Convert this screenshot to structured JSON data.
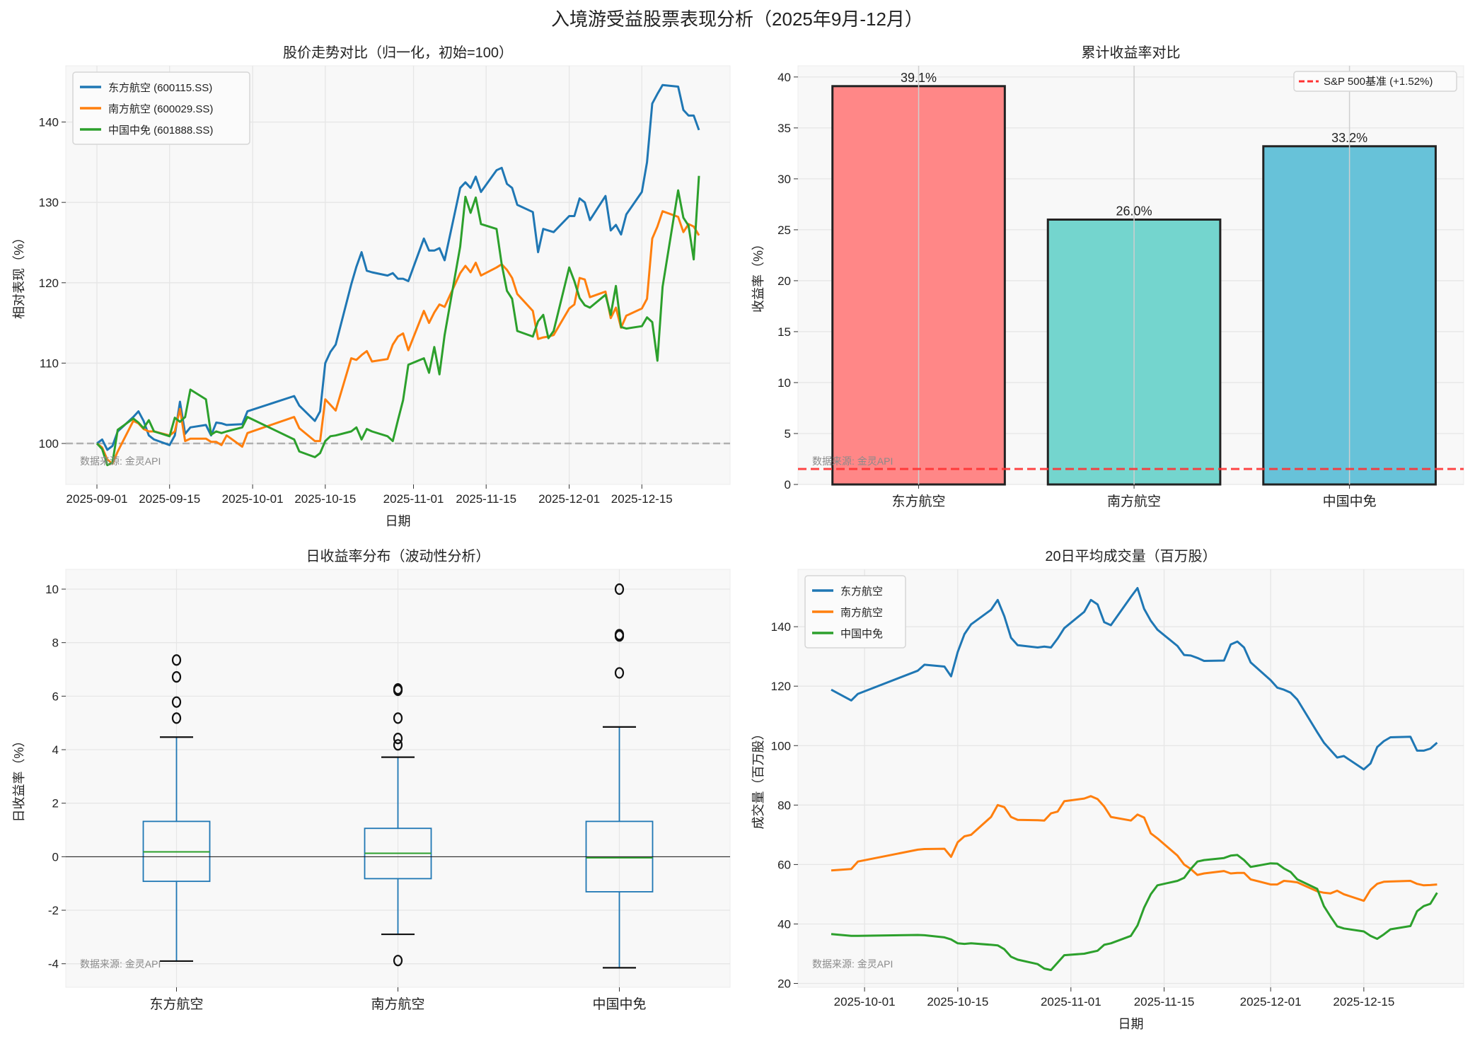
{
  "title": "入境游受益股票表现分析（2025年9月-12月）",
  "colors": {
    "blue": "#1f77b4",
    "orange": "#ff7f0e",
    "green": "#2ca02c",
    "benchmark": "#ff3333"
  },
  "chart_data": [
    {
      "type": "line",
      "title": "股价走势对比（归一化，初始=100）",
      "xlabel": "日期",
      "ylabel": "相对表现（%）",
      "xlim": [
        "2025-08-26",
        "2026-01-01"
      ],
      "ylim": [
        94.9,
        147
      ],
      "yticks": [
        100,
        110,
        120,
        130,
        140
      ],
      "xticks": [
        "2025-09-01",
        "2025-09-15",
        "2025-10-01",
        "2025-10-15",
        "2025-11-01",
        "2025-11-15",
        "2025-12-01",
        "2025-12-15"
      ],
      "grid": true,
      "legend": "top-left",
      "reference_line": 100,
      "watermark": "数据来源: 金灵API",
      "x": [
        "2025-09-01",
        "2025-09-02",
        "2025-09-03",
        "2025-09-04",
        "2025-09-05",
        "2025-09-08",
        "2025-09-09",
        "2025-09-10",
        "2025-09-11",
        "2025-09-12",
        "2025-09-15",
        "2025-09-16",
        "2025-09-17",
        "2025-09-18",
        "2025-09-19",
        "2025-09-22",
        "2025-09-23",
        "2025-09-24",
        "2025-09-25",
        "2025-09-26",
        "2025-09-29",
        "2025-09-30",
        "2025-10-09",
        "2025-10-10",
        "2025-10-13",
        "2025-10-14",
        "2025-10-15",
        "2025-10-16",
        "2025-10-17",
        "2025-10-20",
        "2025-10-21",
        "2025-10-22",
        "2025-10-23",
        "2025-10-24",
        "2025-10-27",
        "2025-10-28",
        "2025-10-29",
        "2025-10-30",
        "2025-10-31",
        "2025-11-03",
        "2025-11-04",
        "2025-11-05",
        "2025-11-06",
        "2025-11-07",
        "2025-11-10",
        "2025-11-11",
        "2025-11-12",
        "2025-11-13",
        "2025-11-14",
        "2025-11-17",
        "2025-11-18",
        "2025-11-19",
        "2025-11-20",
        "2025-11-21",
        "2025-11-24",
        "2025-11-25",
        "2025-11-26",
        "2025-11-27",
        "2025-11-28",
        "2025-12-01",
        "2025-12-02",
        "2025-12-03",
        "2025-12-04",
        "2025-12-05",
        "2025-12-08",
        "2025-12-09",
        "2025-12-10",
        "2025-12-11",
        "2025-12-12",
        "2025-12-15",
        "2025-12-16",
        "2025-12-17",
        "2025-12-18",
        "2025-12-19",
        "2025-12-22",
        "2025-12-23",
        "2025-12-24",
        "2025-12-25",
        "2025-12-26"
      ],
      "series": [
        {
          "name": "东方航空 (600115.SS)",
          "color": "#1f77b4",
          "values": [
            100,
            100.5,
            99.2,
            99.7,
            101.5,
            103.3,
            104,
            102.8,
            101,
            100.5,
            99.8,
            101,
            105.2,
            101.2,
            102,
            102.3,
            101,
            102.6,
            102.5,
            102.3,
            102.4,
            104,
            105.9,
            104.7,
            102.8,
            104,
            110,
            111.4,
            112.3,
            119.8,
            122,
            123.8,
            121.5,
            121.3,
            120.9,
            121.2,
            120.5,
            120.5,
            120.2,
            125.5,
            124,
            124,
            124.3,
            122.8,
            131.8,
            132.5,
            131.8,
            133.2,
            131.3,
            134,
            134.3,
            132.3,
            131.8,
            129.7,
            128.8,
            123.8,
            126.7,
            126.5,
            126.3,
            128.3,
            128.3,
            130.5,
            130,
            127.8,
            130.8,
            126.5,
            127.2,
            126,
            128.5,
            131.3,
            135,
            142.3,
            143.5,
            144.6,
            144.4,
            141.5,
            140.8,
            140.8,
            139
          ]
        },
        {
          "name": "南方航空 (600029.SS)",
          "color": "#ff7f0e",
          "values": [
            100,
            99.5,
            98,
            97.5,
            99,
            102.8,
            102.5,
            101.8,
            101.5,
            101.5,
            101,
            101.5,
            104.3,
            100.3,
            100.6,
            100.6,
            100.2,
            100.2,
            99.8,
            101,
            99.6,
            101.3,
            103.3,
            101.9,
            100.3,
            100.3,
            105.5,
            104.8,
            104.1,
            110.6,
            110.4,
            111,
            111.5,
            110.2,
            110.5,
            112.3,
            113.3,
            113.7,
            111.6,
            116.5,
            115,
            116.3,
            117.3,
            117,
            121.2,
            122.1,
            121.3,
            122.5,
            120.9,
            121.9,
            122.3,
            121.6,
            120.6,
            118.6,
            116.5,
            113,
            113.2,
            113.3,
            113.5,
            116.8,
            117.3,
            120.6,
            120.4,
            118.2,
            118.9,
            115.6,
            116.9,
            114.4,
            115.9,
            116.8,
            118,
            125.5,
            127,
            128.9,
            128.2,
            126.3,
            127.3,
            127,
            125.9
          ]
        },
        {
          "name": "中国中免 (601888.SS)",
          "color": "#2ca02c",
          "values": [
            100,
            99.3,
            97.3,
            97.6,
            101.7,
            103.1,
            102.6,
            101.9,
            102.9,
            101.5,
            100.9,
            103.2,
            102.7,
            103.3,
            106.7,
            105.5,
            101.1,
            101.5,
            101.3,
            101.5,
            102,
            103.3,
            100.5,
            99,
            98.3,
            98.8,
            100.3,
            100.9,
            101,
            101.5,
            102,
            100.5,
            101.8,
            101.5,
            100.9,
            100.3,
            102.9,
            105.4,
            109.8,
            110.6,
            108.8,
            112,
            108.6,
            113.5,
            124.5,
            130.7,
            128.7,
            130.6,
            127.3,
            126.7,
            122.3,
            119,
            118,
            114,
            113.3,
            115.2,
            116,
            113.1,
            114,
            121.9,
            120.2,
            118.1,
            117.2,
            116.9,
            118.5,
            116,
            119.6,
            114.5,
            114.3,
            114.6,
            115.7,
            115.1,
            110.3,
            119.5,
            131.5,
            128.1,
            127.1,
            122.9,
            133.3
          ]
        }
      ]
    },
    {
      "type": "bar",
      "title": "累计收益率对比",
      "ylabel": "收益率（%）",
      "categories": [
        "东方航空",
        "南方航空",
        "中国中免"
      ],
      "values": [
        39.1,
        26.0,
        33.2
      ],
      "data_labels": [
        "39.1%",
        "26.0%",
        "33.2%"
      ],
      "colors": [
        "#ff8787",
        "#74d5ce",
        "#67c2d9"
      ],
      "ylim": [
        0,
        41.1
      ],
      "yticks": [
        0,
        5,
        10,
        15,
        20,
        25,
        30,
        35,
        40
      ],
      "grid": true,
      "legend": "top-left",
      "benchmark": {
        "label": "S&P 500基准 (+1.52%)",
        "value": 1.52
      },
      "watermark": "数据来源: 金灵API"
    },
    {
      "type": "box",
      "title": "日收益率分布（波动性分析）",
      "ylabel": "日收益率（%）",
      "categories": [
        "东方航空",
        "南方航空",
        "中国中免"
      ],
      "ylim": [
        -4.88,
        10.74
      ],
      "yticks": [
        -4,
        -2,
        0,
        2,
        4,
        6,
        8,
        10
      ],
      "grid": true,
      "reference_line": 0,
      "watermark": "数据来源: 金灵API",
      "boxes": [
        {
          "whisker_low": -3.9,
          "q1": -0.92,
          "median": 0.18,
          "q3": 1.32,
          "whisker_high": 4.47,
          "fliers": [
            5.18,
            5.78,
            6.72,
            7.35
          ]
        },
        {
          "whisker_low": -2.9,
          "q1": -0.82,
          "median": 0.13,
          "q3": 1.06,
          "whisker_high": 3.72,
          "fliers": [
            4.18,
            4.42,
            5.18,
            6.22,
            6.27,
            -3.88
          ]
        },
        {
          "whisker_low": -4.15,
          "q1": -1.31,
          "median": -0.04,
          "q3": 1.32,
          "whisker_high": 4.85,
          "fliers": [
            6.87,
            8.25,
            8.3,
            10.0
          ]
        }
      ]
    },
    {
      "type": "line",
      "title": "20日平均成交量（百万股）",
      "xlabel": "日期",
      "ylabel": "成交量（百万股）",
      "xlim": [
        "2025-09-21",
        "2025-12-30"
      ],
      "ylim": [
        18.7,
        159.3
      ],
      "yticks": [
        20,
        40,
        60,
        80,
        100,
        120,
        140
      ],
      "xticks": [
        "2025-10-01",
        "2025-10-15",
        "2025-11-01",
        "2025-11-15",
        "2025-12-01",
        "2025-12-15"
      ],
      "grid": true,
      "legend": "top-left",
      "watermark": "数据来源: 金灵API",
      "x": [
        "2025-09-26",
        "2025-09-29",
        "2025-09-30",
        "2025-10-09",
        "2025-10-10",
        "2025-10-13",
        "2025-10-14",
        "2025-10-15",
        "2025-10-16",
        "2025-10-17",
        "2025-10-20",
        "2025-10-21",
        "2025-10-22",
        "2025-10-23",
        "2025-10-24",
        "2025-10-27",
        "2025-10-28",
        "2025-10-29",
        "2025-10-30",
        "2025-10-31",
        "2025-11-03",
        "2025-11-04",
        "2025-11-05",
        "2025-11-06",
        "2025-11-07",
        "2025-11-10",
        "2025-11-11",
        "2025-11-12",
        "2025-11-13",
        "2025-11-14",
        "2025-11-17",
        "2025-11-18",
        "2025-11-19",
        "2025-11-20",
        "2025-11-21",
        "2025-11-24",
        "2025-11-25",
        "2025-11-26",
        "2025-11-27",
        "2025-11-28",
        "2025-12-01",
        "2025-12-02",
        "2025-12-03",
        "2025-12-04",
        "2025-12-05",
        "2025-12-08",
        "2025-12-09",
        "2025-12-10",
        "2025-12-11",
        "2025-12-12",
        "2025-12-15",
        "2025-12-16",
        "2025-12-17",
        "2025-12-18",
        "2025-12-19",
        "2025-12-22",
        "2025-12-23",
        "2025-12-24",
        "2025-12-25",
        "2025-12-26"
      ],
      "series": [
        {
          "name": "东方航空",
          "color": "#1f77b4",
          "values": [
            118.8,
            115.2,
            117.4,
            125.2,
            127.2,
            126.6,
            123.3,
            131.5,
            137.5,
            140.8,
            145.7,
            149,
            143.5,
            136.3,
            133.8,
            133,
            133.3,
            133,
            136,
            139.5,
            145,
            149,
            147.5,
            141.5,
            140.5,
            150,
            153,
            146,
            142,
            139,
            133.5,
            130.5,
            130.3,
            129.5,
            128.5,
            128.6,
            134,
            135,
            133,
            128,
            122,
            119.5,
            118.8,
            117.8,
            115.5,
            104.5,
            101,
            98.5,
            96,
            96.5,
            92,
            94,
            99.5,
            101.5,
            102.8,
            103,
            98.3,
            98.3,
            99,
            101
          ]
        },
        {
          "name": "南方航空",
          "color": "#ff7f0e",
          "values": [
            58,
            58.5,
            61,
            65,
            65.2,
            65.3,
            62.6,
            67.5,
            69.5,
            70,
            76,
            80,
            79.3,
            76,
            75,
            74.9,
            74.8,
            77.2,
            77.8,
            81.3,
            82.2,
            83,
            82,
            79.5,
            76,
            74.8,
            76.8,
            75.8,
            70.5,
            68.8,
            63,
            60,
            58.5,
            56.5,
            57,
            57.8,
            57,
            57.2,
            57.2,
            55,
            53.3,
            53.3,
            54.5,
            54.3,
            54,
            51,
            50.5,
            50.3,
            51.2,
            50,
            47.8,
            51.5,
            53.5,
            54.2,
            54.3,
            54.5,
            53.5,
            53,
            53.1,
            53.3
          ]
        },
        {
          "name": "中国中免",
          "color": "#2ca02c",
          "values": [
            36.6,
            36,
            36,
            36.3,
            36.2,
            35.5,
            34.8,
            33.5,
            33.3,
            33.5,
            33,
            32.8,
            31.5,
            29,
            28,
            26.5,
            25,
            24.5,
            27,
            29.5,
            30,
            30.5,
            31,
            33,
            33.5,
            36,
            39.5,
            45.5,
            50,
            53,
            54.5,
            55.5,
            58.5,
            61,
            61.5,
            62.2,
            63,
            63.2,
            61.5,
            59.2,
            60.4,
            60.3,
            58.7,
            57.5,
            55,
            51.8,
            46,
            42.5,
            39.2,
            38.5,
            37.5,
            36,
            35,
            36.5,
            38.2,
            39.3,
            44.3,
            46,
            46.8,
            50.5
          ]
        }
      ]
    }
  ]
}
